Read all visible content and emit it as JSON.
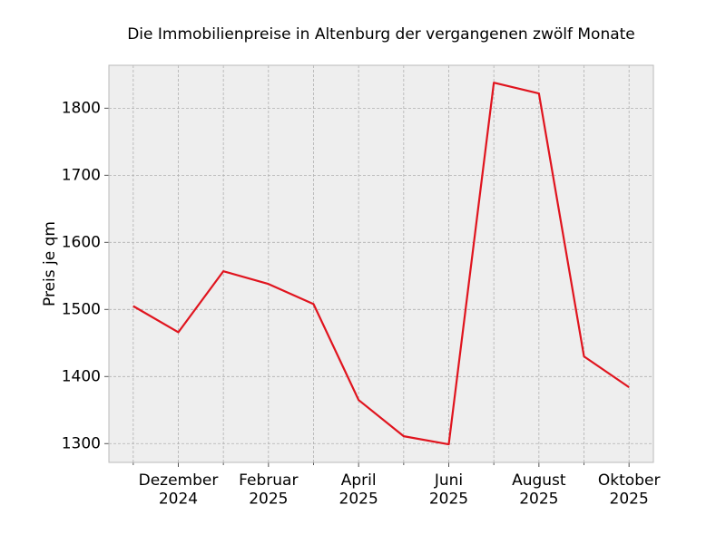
{
  "chart_data": {
    "type": "line",
    "title": "Die Immobilienpreise in Altenburg der vergangenen zwölf Monate",
    "ylabel": "Preis je qm",
    "categories": [
      null,
      "Dezember\n2024",
      null,
      "Februar\n2025",
      null,
      "April\n2025",
      null,
      "Juni\n2025",
      null,
      "August\n2025",
      null,
      "Oktober\n2025"
    ],
    "series": [
      {
        "name": "Preis je qm",
        "color": "#e0141e",
        "values": [
          1505,
          1466,
          1557,
          1538,
          1508,
          1365,
          1311,
          1299,
          1838,
          1822,
          1430,
          1384
        ]
      }
    ],
    "ylim": [
      1272,
      1864
    ],
    "yticks": [
      1300,
      1400,
      1500,
      1600,
      1700,
      1800
    ],
    "grid": true
  }
}
